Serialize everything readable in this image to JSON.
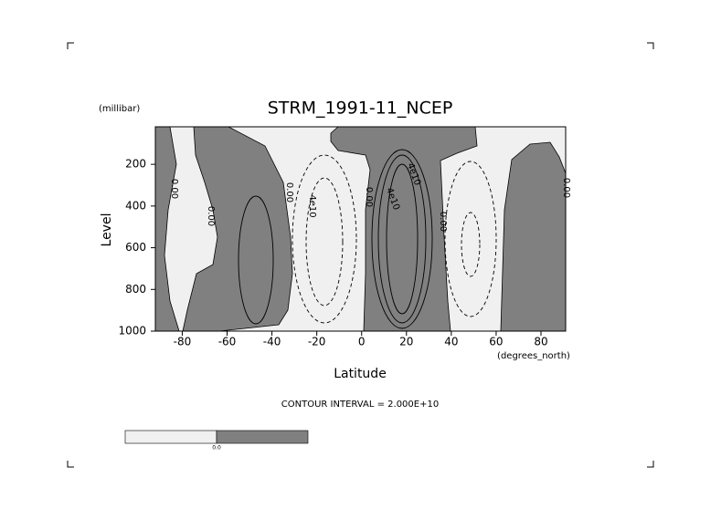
{
  "chart_data": {
    "type": "contour",
    "title": "STRM_1991-11_NCEP",
    "y_units": "(millibar)",
    "ylabel": "Level",
    "x_units": "(degrees_north)",
    "xlabel": "Latitude",
    "note": "CONTOUR INTERVAL = 2.000E+10",
    "xlim": [
      -92,
      91
    ],
    "xticks": [
      -80,
      -60,
      -40,
      -20,
      0,
      20,
      40,
      60,
      80
    ],
    "ylim": [
      1000,
      20
    ],
    "yticks": [
      1000,
      800,
      600,
      400,
      200
    ],
    "contour_labels": [
      "0.00",
      "0.00",
      "0.00",
      "4e10",
      "0.00",
      "4e10",
      "4e10",
      "0.00",
      "0.00"
    ],
    "colors": [
      "#f0f0f0",
      "#808080"
    ],
    "colorbar_label": "0.0"
  }
}
